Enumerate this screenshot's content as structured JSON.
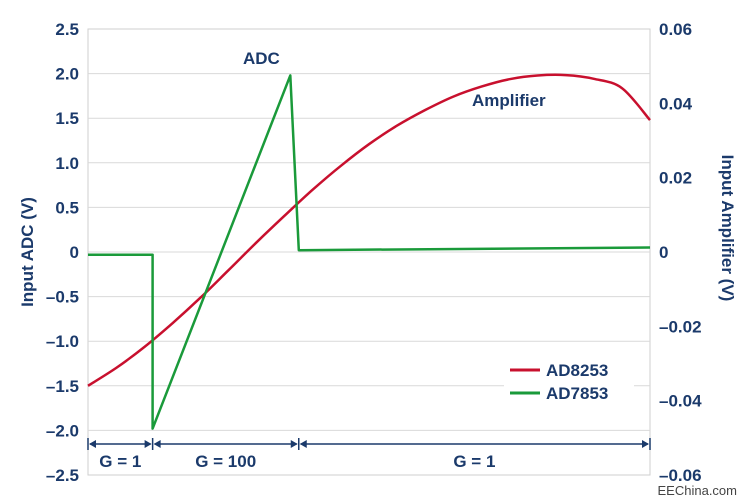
{
  "chart_data": {
    "type": "line",
    "title": "",
    "left_axis": {
      "label": "Input ADC (V)",
      "range": [
        -2.5,
        2.5
      ],
      "ticks": [
        "2.5",
        "2.0",
        "1.5",
        "1.0",
        "0.5",
        "0",
        "–0.5",
        "–1.0",
        "–1.5",
        "–2.0",
        "–2.5"
      ]
    },
    "right_axis": {
      "label": "Input Amplifier (V)",
      "range": [
        -0.06,
        0.06
      ],
      "ticks": [
        "0.06",
        "0.04",
        "0.02",
        "0",
        "–0.02",
        "–0.04",
        "–0.06"
      ]
    },
    "x_range": [
      0,
      100
    ],
    "grid": true,
    "legend_position": "bottom-right",
    "series": [
      {
        "name": "AD8253",
        "axis": "right",
        "color": "#c8102e",
        "x": [
          0,
          5,
          10,
          15,
          20,
          25,
          30,
          35,
          40,
          45,
          50,
          55,
          60,
          65,
          70,
          75,
          80,
          85,
          90,
          95,
          100
        ],
        "y": [
          -0.036,
          -0.0312,
          -0.0256,
          -0.0192,
          -0.0123,
          -0.0049,
          0.0026,
          0.0098,
          0.0168,
          0.0232,
          0.029,
          0.034,
          0.0382,
          0.0418,
          0.0445,
          0.0465,
          0.0475,
          0.0476,
          0.0466,
          0.0441,
          0.0355
        ]
      },
      {
        "name": "AD7853",
        "axis": "left",
        "color": "#1a9a3a",
        "x": [
          0,
          11.5,
          11.5,
          36,
          37.5,
          100
        ],
        "y": [
          -0.03,
          -0.03,
          -1.98,
          1.98,
          0.02,
          0.05
        ]
      }
    ],
    "annotations": {
      "adc": "ADC",
      "amplifier": "Amplifier"
    },
    "regions": [
      {
        "label": "G = 1",
        "start": 0,
        "end": 11.5
      },
      {
        "label": "G = 100",
        "start": 11.5,
        "end": 37.5
      },
      {
        "label": "G = 1",
        "start": 37.5,
        "end": 100
      }
    ],
    "colors": {
      "axis_text": "#1b3a6b",
      "grid": "#d9d9d9",
      "region_arrow": "#1b3a6b"
    }
  },
  "watermark": "EEChina.com"
}
